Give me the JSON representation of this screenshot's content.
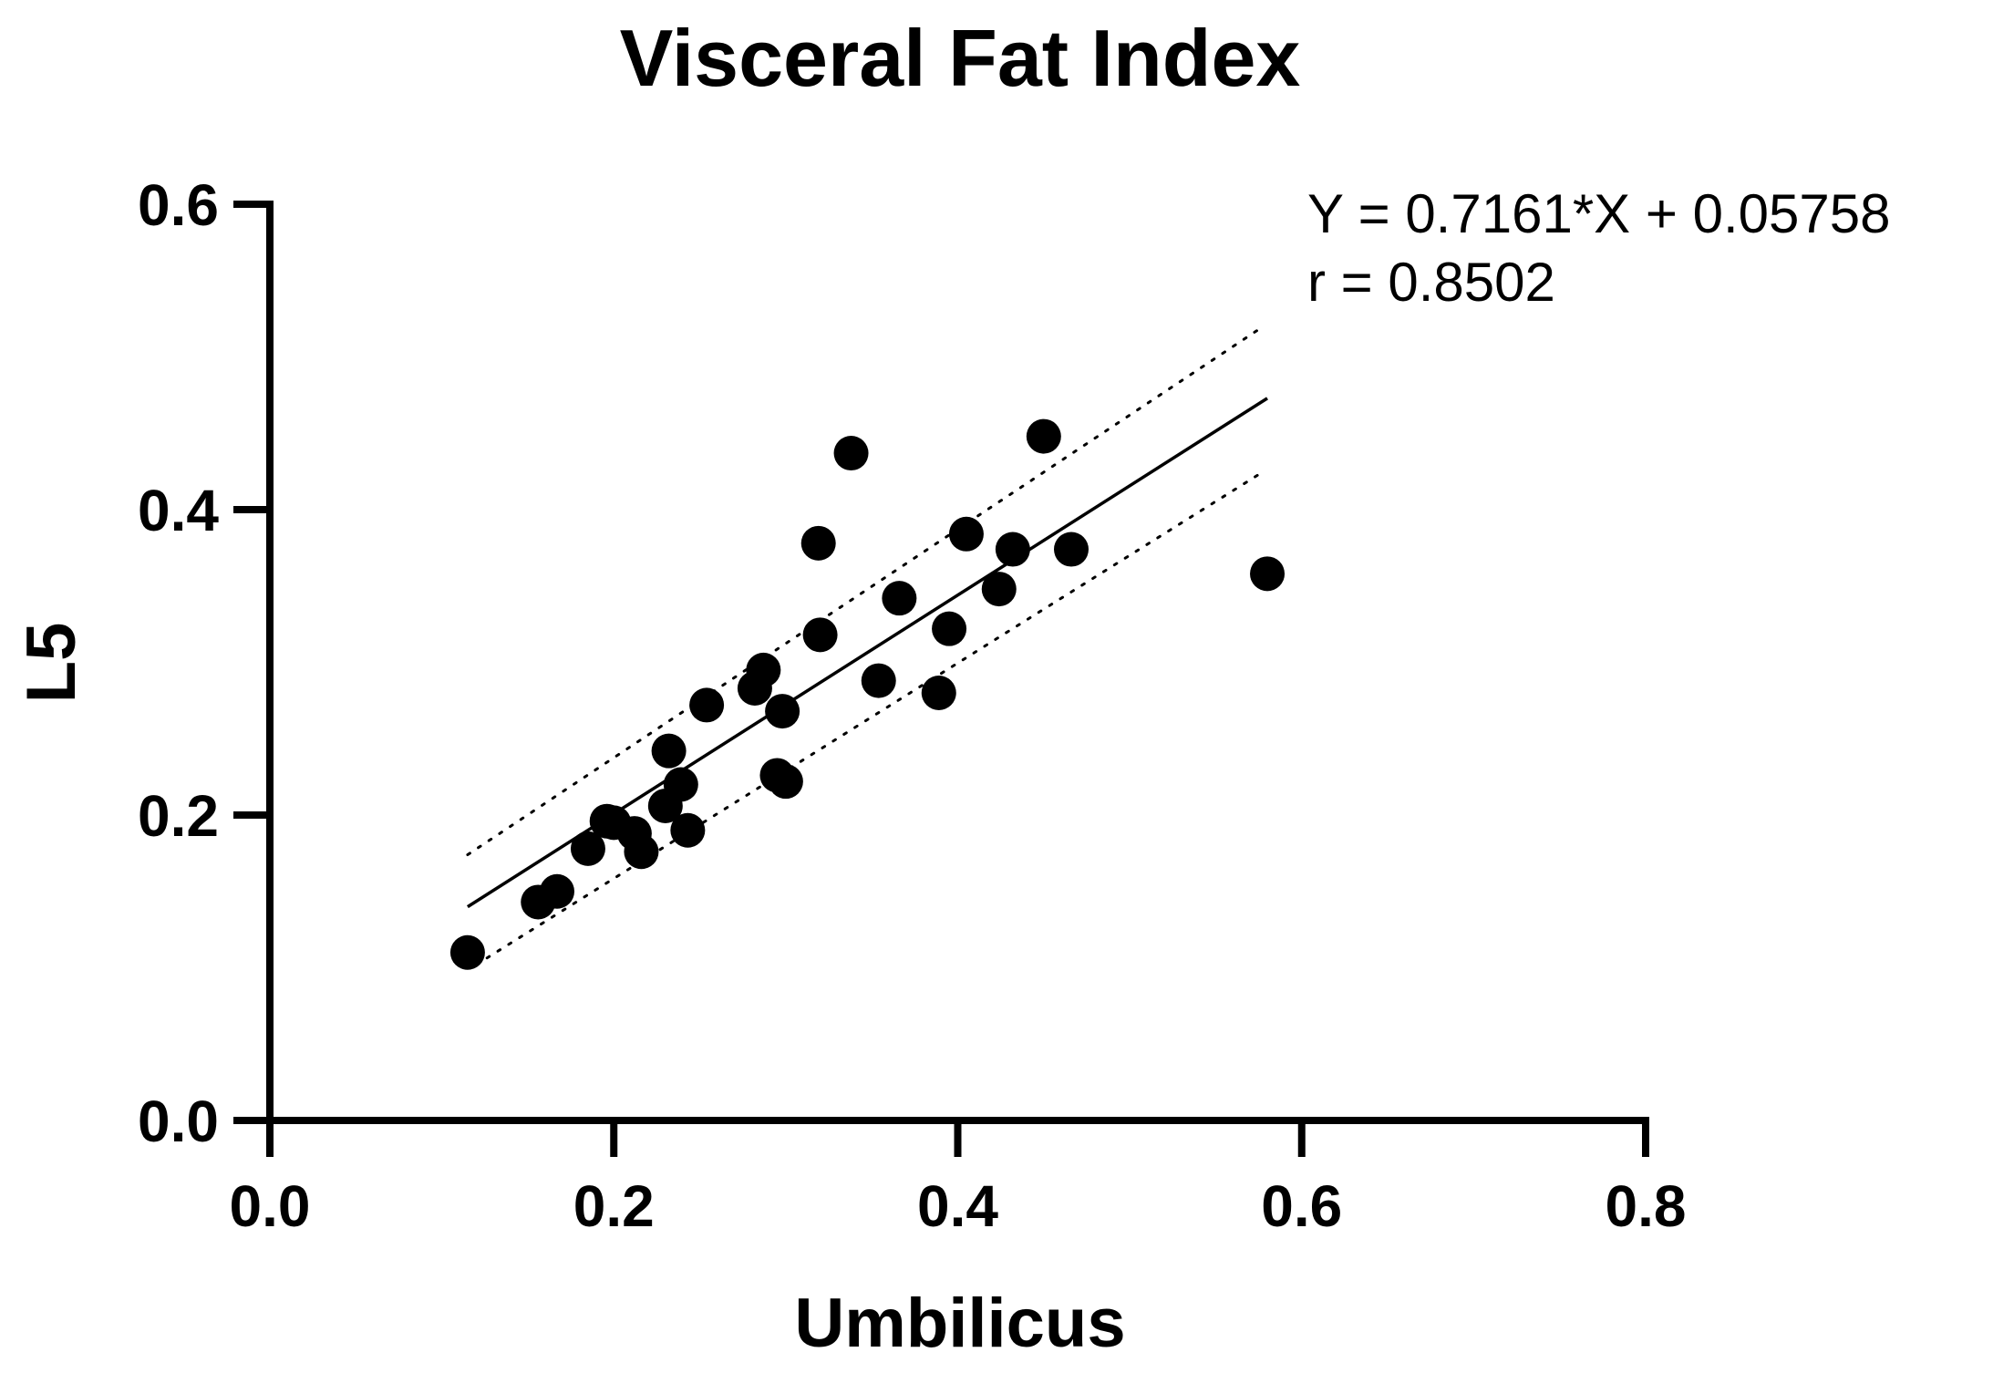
{
  "chart_data": {
    "type": "scatter",
    "title": "Visceral Fat Index",
    "xlabel": "Umbilicus",
    "ylabel": "L5",
    "xlim": [
      0.0,
      0.8
    ],
    "ylim": [
      0.0,
      0.6
    ],
    "xticks": [
      0.0,
      0.2,
      0.4,
      0.6,
      0.8
    ],
    "yticks": [
      0.0,
      0.2,
      0.4,
      0.6
    ],
    "xtick_labels": [
      "0.0",
      "0.2",
      "0.4",
      "0.6",
      "0.8"
    ],
    "ytick_labels": [
      "0.0",
      "0.2",
      "0.4",
      "0.6"
    ],
    "grid": false,
    "points": [
      {
        "x": 0.115,
        "y": 0.11
      },
      {
        "x": 0.156,
        "y": 0.143
      },
      {
        "x": 0.167,
        "y": 0.15
      },
      {
        "x": 0.185,
        "y": 0.178
      },
      {
        "x": 0.196,
        "y": 0.196
      },
      {
        "x": 0.2,
        "y": 0.195
      },
      {
        "x": 0.212,
        "y": 0.188
      },
      {
        "x": 0.216,
        "y": 0.176
      },
      {
        "x": 0.23,
        "y": 0.206
      },
      {
        "x": 0.232,
        "y": 0.242
      },
      {
        "x": 0.239,
        "y": 0.22
      },
      {
        "x": 0.243,
        "y": 0.19
      },
      {
        "x": 0.254,
        "y": 0.272
      },
      {
        "x": 0.282,
        "y": 0.283
      },
      {
        "x": 0.287,
        "y": 0.295
      },
      {
        "x": 0.295,
        "y": 0.226
      },
      {
        "x": 0.298,
        "y": 0.268
      },
      {
        "x": 0.3,
        "y": 0.222
      },
      {
        "x": 0.319,
        "y": 0.378
      },
      {
        "x": 0.32,
        "y": 0.318
      },
      {
        "x": 0.338,
        "y": 0.437
      },
      {
        "x": 0.354,
        "y": 0.288
      },
      {
        "x": 0.366,
        "y": 0.342
      },
      {
        "x": 0.389,
        "y": 0.28
      },
      {
        "x": 0.395,
        "y": 0.322
      },
      {
        "x": 0.405,
        "y": 0.384
      },
      {
        "x": 0.424,
        "y": 0.348
      },
      {
        "x": 0.432,
        "y": 0.374
      },
      {
        "x": 0.45,
        "y": 0.448
      },
      {
        "x": 0.466,
        "y": 0.374
      },
      {
        "x": 0.58,
        "y": 0.358
      }
    ],
    "fit": {
      "slope": 0.7161,
      "intercept": 0.05758,
      "x_range": [
        0.115,
        0.58
      ],
      "ci_upper": [
        [
          0.115,
          0.174
        ],
        [
          0.575,
          0.518
        ]
      ],
      "ci_lower": [
        [
          0.12,
          0.102
        ],
        [
          0.575,
          0.423
        ]
      ]
    },
    "annotations": {
      "equation": "Y = 0.7161*X + 0.05758",
      "r_value": "r = 0.8502"
    }
  }
}
